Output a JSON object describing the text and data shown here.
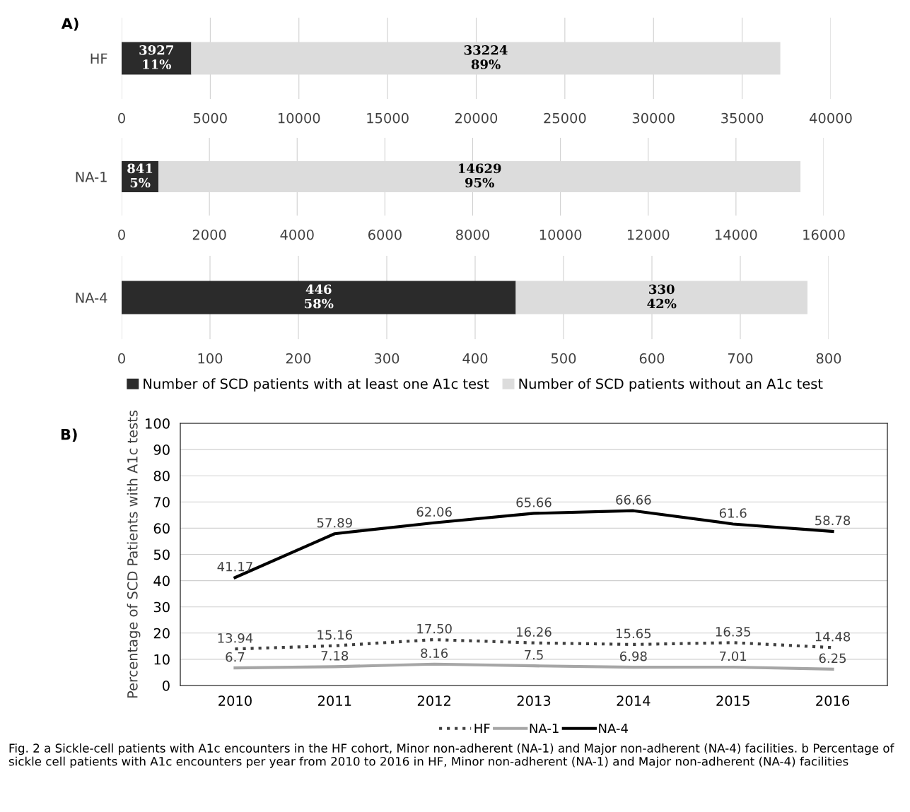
{
  "chart_data": [
    {
      "type": "bar",
      "title": "A)",
      "orientation": "horizontal",
      "stacked": true,
      "categories": [
        "HF"
      ],
      "xlim": [
        0,
        40000
      ],
      "xticks": [
        0,
        5000,
        10000,
        15000,
        20000,
        25000,
        30000,
        35000,
        40000
      ],
      "grid": "x",
      "series": [
        {
          "color": "#2b2b2b",
          "values": [
            3927
          ],
          "value_labels": [
            "3927\n11%"
          ]
        },
        {
          "color": "#dcdcdc",
          "values": [
            33224
          ],
          "value_labels": [
            "33224\n89%"
          ]
        }
      ]
    },
    {
      "type": "bar",
      "orientation": "horizontal",
      "stacked": true,
      "categories": [
        "NA-1"
      ],
      "xlim": [
        0,
        16000
      ],
      "xticks": [
        0,
        2000,
        4000,
        6000,
        8000,
        10000,
        12000,
        14000,
        16000
      ],
      "grid": "x",
      "series": [
        {
          "color": "#2b2b2b",
          "values": [
            841
          ],
          "value_labels": [
            "841\n5%"
          ]
        },
        {
          "color": "#dcdcdc",
          "values": [
            14629
          ],
          "value_labels": [
            "14629\n95%"
          ]
        }
      ]
    },
    {
      "type": "bar",
      "orientation": "horizontal",
      "stacked": true,
      "categories": [
        "NA-4"
      ],
      "xlim": [
        0,
        800
      ],
      "xticks": [
        0,
        100,
        200,
        300,
        400,
        500,
        600,
        700,
        800
      ],
      "grid": "x",
      "legend": "bottom",
      "series": [
        {
          "name": "Number of SCD patients with at least one A1c test",
          "color": "#2b2b2b",
          "values": [
            446
          ],
          "value_labels": [
            "446\n58%"
          ]
        },
        {
          "name": "Number of SCD patients without an A1c test",
          "color": "#dcdcdc",
          "values": [
            330
          ],
          "value_labels": [
            "330\n42%"
          ]
        }
      ]
    },
    {
      "type": "line",
      "title": "B)",
      "ylabel": "Percentage of SCD Patients with A1c tests",
      "categories": [
        "2010",
        "2011",
        "2012",
        "2013",
        "2014",
        "2015",
        "2016"
      ],
      "ylim": [
        0,
        100
      ],
      "yticks": [
        0,
        10,
        20,
        30,
        40,
        50,
        60,
        70,
        80,
        90,
        100
      ],
      "grid": "y",
      "legend": "bottom",
      "series": [
        {
          "name": "HF",
          "color": "#404040",
          "line_style": "dotted",
          "values": [
            13.94,
            15.16,
            17.5,
            16.26,
            15.65,
            16.35,
            14.48
          ],
          "value_labels": [
            "13.94",
            "15.16",
            "17.50",
            "16.26",
            "15.65",
            "16.35",
            "14.48"
          ]
        },
        {
          "name": "NA-1",
          "color": "#a6a6a6",
          "line_style": "solid",
          "values": [
            6.7,
            7.18,
            8.16,
            7.5,
            6.98,
            7.01,
            6.25
          ],
          "value_labels": [
            "6.7",
            "7.18",
            "8.16",
            "7.5",
            "6.98",
            "7.01",
            "6.25"
          ]
        },
        {
          "name": "NA-4",
          "color": "#000000",
          "line_style": "solid",
          "values": [
            41.17,
            57.89,
            62.06,
            65.66,
            66.66,
            61.6,
            58.78
          ],
          "value_labels": [
            "41.17",
            "57.89",
            "62.06",
            "65.66",
            "66.66",
            "61.6",
            "58.78"
          ]
        }
      ],
      "annotations": [
        "Fig. 2 a Sickle-cell patients with A1c encounters in the HF cohort, Minor non-adherent (NA-1) and Major non-adherent (NA-4) facilities. b Percentage of sickle cell patients with A1c encounters per year from 2010 to 2016 in HF, Minor non-adherent (NA-1) and Major non-adherent (NA-4) facilities"
      ]
    }
  ]
}
